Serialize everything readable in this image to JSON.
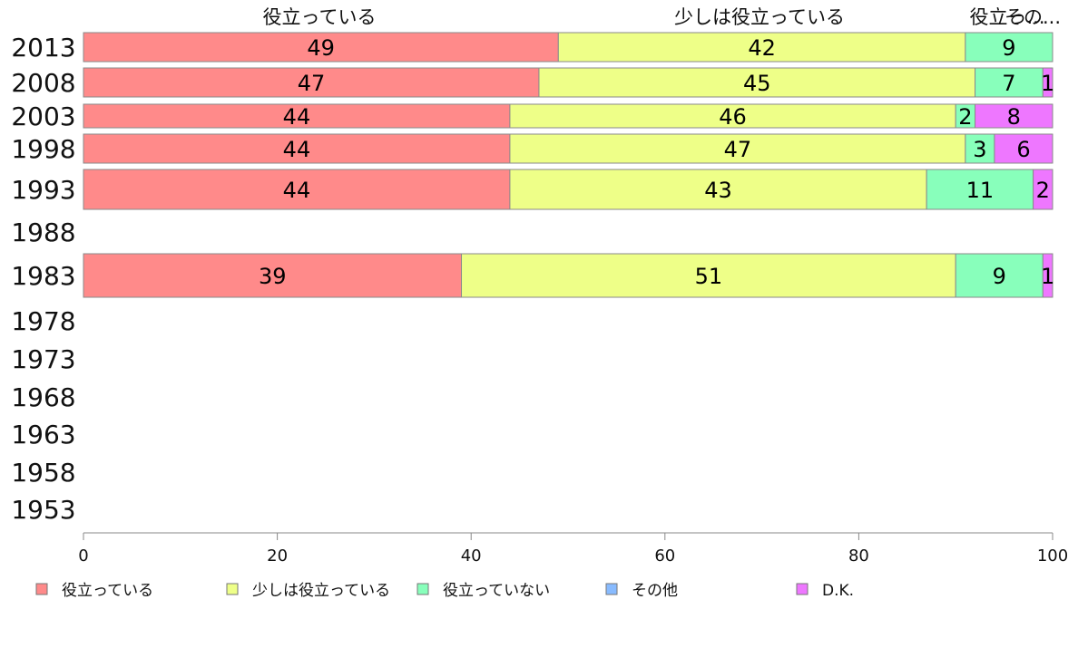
{
  "chart_data": {
    "type": "bar",
    "orientation": "horizontal-stacked-100",
    "categories": [
      "2013",
      "2008",
      "2003",
      "1998",
      "1993",
      "1988",
      "1983",
      "1978",
      "1973",
      "1968",
      "1963",
      "1958",
      "1953"
    ],
    "series": [
      {
        "name": "役立っている",
        "color": "#ff8a8a",
        "values": [
          49,
          47,
          44,
          44,
          44,
          null,
          39,
          null,
          null,
          null,
          null,
          null,
          null
        ]
      },
      {
        "name": "少しは役立っている",
        "color": "#eeff88",
        "values": [
          42,
          45,
          46,
          47,
          43,
          null,
          51,
          null,
          null,
          null,
          null,
          null,
          null
        ]
      },
      {
        "name": "役立っていない",
        "color": "#88ffbb",
        "values": [
          9,
          7,
          2,
          3,
          11,
          null,
          9,
          null,
          null,
          null,
          null,
          null,
          null
        ]
      },
      {
        "name": "その他",
        "color": "#88bbff",
        "values": [
          0,
          0,
          0,
          0,
          0,
          null,
          0,
          null,
          null,
          null,
          null,
          null,
          null
        ]
      },
      {
        "name": "D.K.",
        "color": "#ee77ff",
        "values": [
          0,
          1,
          8,
          6,
          2,
          null,
          1,
          null,
          null,
          null,
          null,
          null,
          null
        ]
      }
    ],
    "top_labels": [
      "役立っている",
      "少しは役立っている",
      "役立っ...",
      "その..."
    ],
    "xlim": [
      0,
      100
    ],
    "xticks": [
      0,
      20,
      40,
      60,
      80,
      100
    ],
    "grid": false,
    "legend_position": "bottom"
  }
}
